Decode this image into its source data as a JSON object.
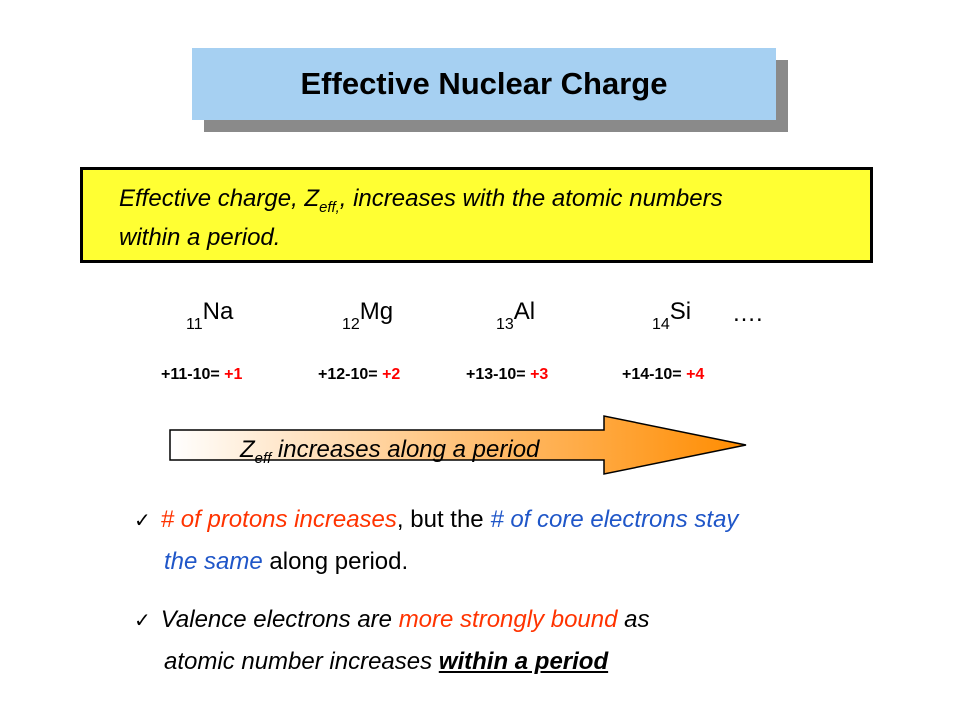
{
  "title": "Effective Nuclear Charge",
  "definition": {
    "line1_prefix": "Effective charge, Z",
    "line1_sub": "eff,",
    "line1_suffix": ", increases with the atomic numbers",
    "line2": "within a period."
  },
  "elements": [
    {
      "number": "11",
      "symbol": "Na"
    },
    {
      "number": "12",
      "symbol": "Mg"
    },
    {
      "number": "13",
      "symbol": "Al"
    },
    {
      "number": "14",
      "symbol": "Si"
    }
  ],
  "ellipsis": "….",
  "calculations": [
    {
      "expr": "+11-10= ",
      "result": "+1"
    },
    {
      "expr": "+12-10= ",
      "result": "+2"
    },
    {
      "expr": "+13-10= ",
      "result": "+3"
    },
    {
      "expr": "+14-10= ",
      "result": "+4"
    }
  ],
  "arrow": {
    "z": "Z",
    "sub": "eff",
    "text": " increases along a period"
  },
  "bullet1": {
    "check": "✓",
    "part1": "# of protons increases",
    "part2": ", but the ",
    "part3": "# of core electrons stay",
    "part4": "the same",
    "part5": " along period."
  },
  "bullet2": {
    "check": "✓",
    "part1": "Valence electrons are ",
    "part2": "more strongly bound",
    "part3": " as",
    "part4": "atomic number increases ",
    "part5": "within a period"
  },
  "colors": {
    "title_bg": "#a6d0f2",
    "definition_bg": "#ffff33",
    "arrow_fill": "#ff9a1a",
    "accent_red": "#ff3300",
    "accent_blue": "#1f56c8"
  }
}
